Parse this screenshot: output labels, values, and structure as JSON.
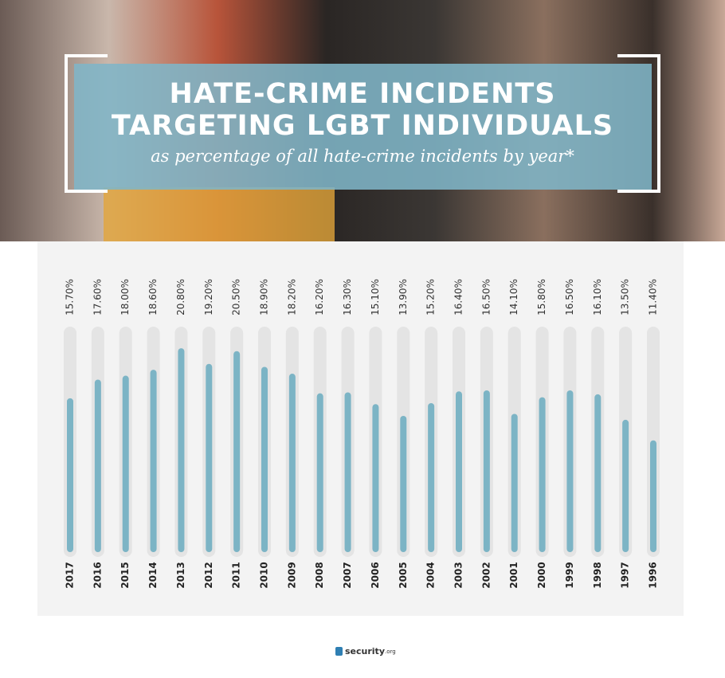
{
  "chart_data": {
    "type": "bar",
    "title": "HATE-CRIME INCIDENTS TARGETING LGBT INDIVIDUALS",
    "subtitle": "as percentage of all hate-crime incidents by year*",
    "categories": [
      "2017",
      "2016",
      "2015",
      "2014",
      "2013",
      "2012",
      "2011",
      "2010",
      "2009",
      "2008",
      "2007",
      "2006",
      "2005",
      "2004",
      "2003",
      "2002",
      "2001",
      "2000",
      "1999",
      "1998",
      "1997",
      "1996"
    ],
    "values": [
      15.7,
      17.6,
      18.0,
      18.6,
      20.8,
      19.2,
      20.5,
      18.9,
      18.2,
      16.2,
      16.3,
      15.1,
      13.9,
      15.2,
      16.4,
      16.5,
      14.1,
      15.8,
      16.5,
      16.1,
      13.5,
      11.4
    ],
    "value_labels": [
      "15.70%",
      "17.60%",
      "18.00%",
      "18.60%",
      "20.80%",
      "19.20%",
      "20.50%",
      "18.90%",
      "18.20%",
      "16.20%",
      "16.30%",
      "15.10%",
      "13.90%",
      "15.20%",
      "16.40%",
      "16.50%",
      "14.10%",
      "15.80%",
      "16.50%",
      "16.10%",
      "13.50%",
      "11.40%"
    ],
    "color": "#7cb4c5",
    "ylim": [
      0,
      23
    ]
  },
  "brand": {
    "name": "security",
    "suffix": ".org"
  }
}
